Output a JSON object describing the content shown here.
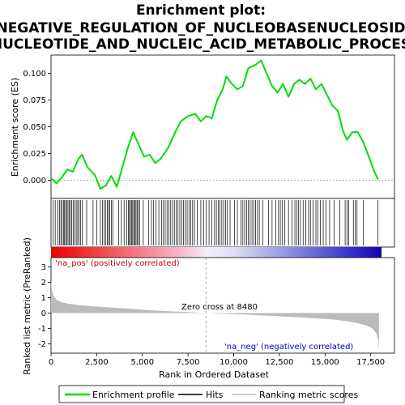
{
  "title_lines": [
    "Enrichment plot:",
    "NEGATIVE_REGULATION_OF_NUCLEOBASENUCLEOSID",
    "NUCLEOTIDE_AND_NUCLEIC_ACID_METABOLIC_PROCES"
  ],
  "colors": {
    "es_line": "#00dd00",
    "hits": "#000000",
    "metric_fill": "#bbbbbb",
    "zero_cross": "#999999",
    "pos_label": "#cc0000",
    "neg_label": "#0000cc"
  },
  "chart_data": [
    {
      "type": "line",
      "panel": "enrichment-profile",
      "ylabel": "Enrichment score (ES)",
      "xlim": [
        0,
        18800
      ],
      "ylim": [
        -0.017,
        0.117
      ],
      "y_ticks": [
        "0.100",
        "0.075",
        "0.050",
        "0.025",
        "0.000"
      ],
      "y_tick_values": [
        0.1,
        0.075,
        0.05,
        0.025,
        0.0
      ],
      "series": [
        {
          "name": "Enrichment profile",
          "x": [
            0,
            300,
            600,
            900,
            1200,
            1500,
            1700,
            2000,
            2400,
            2700,
            3000,
            3300,
            3600,
            3900,
            4200,
            4500,
            4800,
            5100,
            5400,
            5700,
            6000,
            6400,
            6800,
            7100,
            7500,
            7900,
            8200,
            8500,
            8800,
            9100,
            9400,
            9600,
            9900,
            10200,
            10500,
            10800,
            11200,
            11500,
            11800,
            12100,
            12400,
            12700,
            13000,
            13300,
            13600,
            13900,
            14200,
            14500,
            14800,
            15100,
            15400,
            15700,
            16000,
            16200,
            16500,
            16800,
            17100,
            17400,
            17700,
            17900
          ],
          "y": [
            0.002,
            -0.003,
            0.003,
            0.01,
            0.008,
            0.02,
            0.024,
            0.012,
            0.005,
            -0.008,
            -0.005,
            0.004,
            -0.006,
            0.012,
            0.03,
            0.045,
            0.033,
            0.022,
            0.024,
            0.016,
            0.02,
            0.03,
            0.045,
            0.055,
            0.06,
            0.062,
            0.055,
            0.06,
            0.058,
            0.075,
            0.085,
            0.097,
            0.09,
            0.085,
            0.088,
            0.105,
            0.108,
            0.112,
            0.1,
            0.088,
            0.082,
            0.09,
            0.078,
            0.09,
            0.094,
            0.09,
            0.095,
            0.085,
            0.09,
            0.08,
            0.07,
            0.065,
            0.045,
            0.038,
            0.045,
            0.045,
            0.035,
            0.022,
            0.008,
            0.001
          ]
        }
      ],
      "hits": [
        120,
        230,
        380,
        460,
        540,
        610,
        680,
        740,
        800,
        860,
        930,
        990,
        1060,
        1130,
        1210,
        1290,
        1380,
        1460,
        1540,
        1620,
        1700,
        1950,
        2300,
        2500,
        2700,
        2820,
        2900,
        3000,
        3080,
        3150,
        3220,
        3300,
        3380,
        3700,
        3850,
        4000,
        4150,
        4230,
        4290,
        4350,
        4410,
        4470,
        4530,
        4590,
        4650,
        4710,
        4770,
        4850,
        5050,
        5350,
        5500,
        5600,
        5750,
        5900,
        6050,
        6150,
        6250,
        6350,
        6450,
        6550,
        6650,
        6750,
        6850,
        6950,
        7050,
        7150,
        7250,
        7350,
        7450,
        7550,
        7650,
        7750,
        7850,
        8000,
        8200,
        8350,
        8500,
        8650,
        8800,
        8950,
        9050,
        9150,
        9250,
        9350,
        9450,
        9550,
        9650,
        9800,
        10050,
        10200,
        10400,
        10500,
        10600,
        10700,
        10800,
        10900,
        11000,
        11100,
        11200,
        11300,
        11400,
        11600,
        11900,
        12100,
        12300,
        12450,
        12550,
        12650,
        12800,
        13000,
        13200,
        13350,
        13450,
        13550,
        13650,
        13800,
        13950,
        14100,
        14200,
        14350,
        14500,
        14600,
        14750,
        14900,
        15050,
        15250,
        15500,
        15800,
        16100,
        16200,
        16300,
        16550,
        16650,
        16750,
        17100,
        17900
      ]
    },
    {
      "type": "area",
      "panel": "ranked-list-metric",
      "xlabel": "Rank in Ordered Dataset",
      "ylabel": "Ranked list metric (PreRanked)",
      "xlim": [
        0,
        18800
      ],
      "ylim": [
        -2.6,
        3.6
      ],
      "y_ticks": [
        "3",
        "2",
        "1",
        "0",
        "-1",
        "-2"
      ],
      "y_tick_values": [
        3,
        2,
        1,
        0,
        -1,
        -2
      ],
      "x_ticks": [
        "0",
        "2,500",
        "5,000",
        "7,500",
        "10,000",
        "12,500",
        "15,000",
        "17,500"
      ],
      "x_tick_values": [
        0,
        2500,
        5000,
        7500,
        10000,
        12500,
        15000,
        17500
      ],
      "x": [
        0,
        50,
        150,
        300,
        600,
        1000,
        1500,
        2500,
        4000,
        6000,
        8000,
        8480,
        10000,
        12000,
        14000,
        15500,
        16500,
        17200,
        17600,
        17800,
        17900,
        17950
      ],
      "values": [
        2.1,
        1.5,
        1.1,
        0.85,
        0.7,
        0.6,
        0.52,
        0.42,
        0.3,
        0.15,
        0.03,
        0.0,
        -0.06,
        -0.18,
        -0.3,
        -0.42,
        -0.58,
        -0.78,
        -1.0,
        -1.3,
        -1.7,
        -2.4
      ],
      "annotations": {
        "pos": "'na_pos' (positively correlated)",
        "neg": "'na_neg' (negatively correlated)",
        "zero_cross": "Zero cross at 8480",
        "zero_cross_x": 8480
      }
    }
  ],
  "legend": {
    "items": [
      {
        "label": "Enrichment profile"
      },
      {
        "label": "Hits"
      },
      {
        "label": "Ranking metric scores"
      }
    ]
  }
}
